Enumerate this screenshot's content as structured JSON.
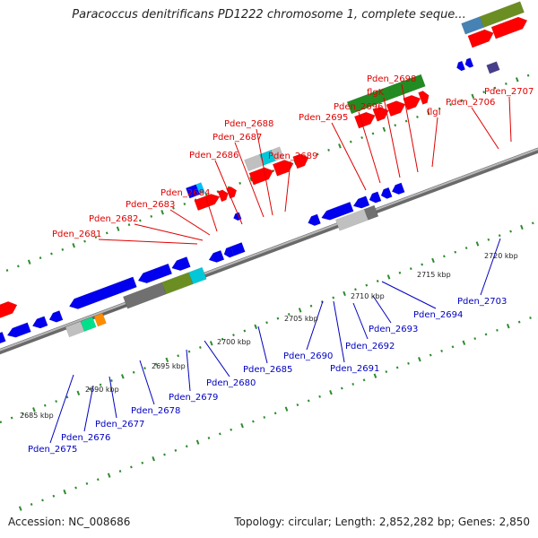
{
  "title": "Paracoccus denitrificans PD1222 chromosome 1, complete seque...",
  "footer": {
    "accession": "Accession: NC_008686",
    "topology": "Topology: circular; Length: 2,852,282 bp; Genes: 2,850"
  },
  "colors": {
    "backbone": "#8a8a8a",
    "top_labels": "#e00000",
    "bottom_labels": "#0000c0",
    "tick": "#2e8b2e",
    "forward_gene": "#ff0000",
    "reverse_gene": "#0000ee",
    "flagellar": "#228b22"
  },
  "scale_labels": [
    "2685 kbp",
    "2690 kbp",
    "2695 kbp",
    "2700 kbp",
    "2705 kbp",
    "2710 kbp",
    "2715 kbp",
    "2720 kbp"
  ],
  "top_gene_labels": [
    "Pden_2681",
    "Pden_2682",
    "Pden_2683",
    "Pden_2684",
    "Pden_2686",
    "Pden_2687",
    "Pden_2688",
    "Pden_2689",
    "Pden_2695",
    "Pden_2696",
    "flgK",
    "Pden_2698",
    "flgI",
    "Pden_2706",
    "Pden_2707"
  ],
  "bottom_gene_labels": [
    "Pden_2675",
    "Pden_2676",
    "Pden_2677",
    "Pden_2678",
    "Pden_2679",
    "Pden_2680",
    "Pden_2685",
    "Pden_2690",
    "Pden_2691",
    "Pden_2692",
    "Pden_2693",
    "Pden_2694",
    "Pden_2703"
  ]
}
